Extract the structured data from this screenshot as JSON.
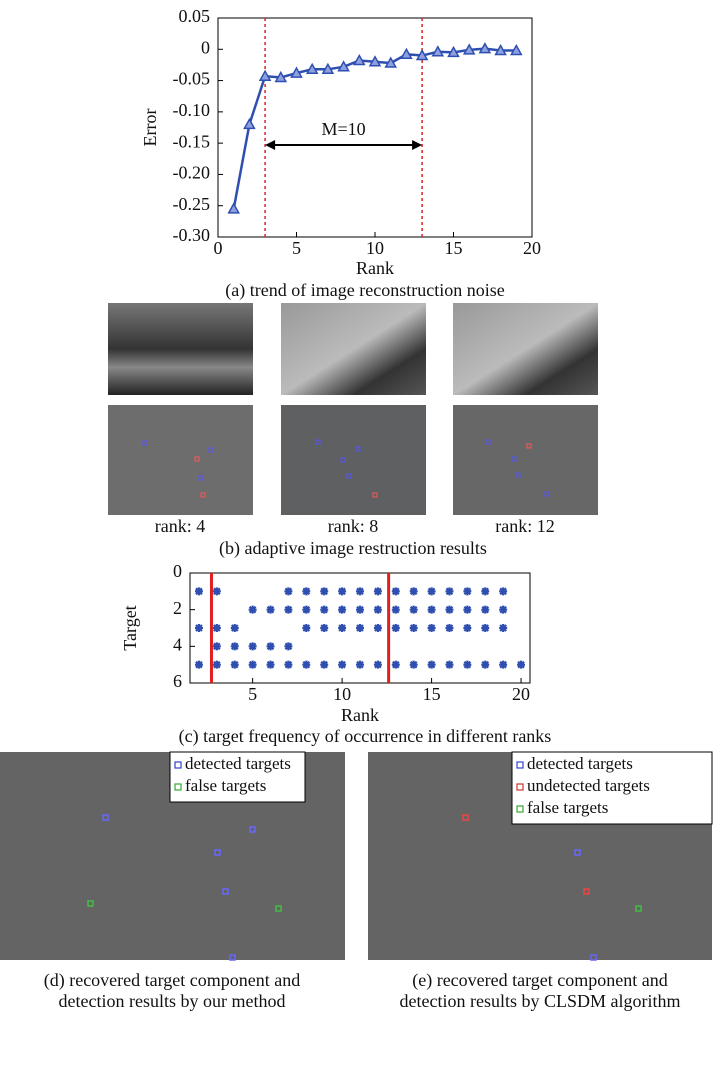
{
  "chart_data": [
    {
      "type": "line",
      "caption": "(a) trend of image reconstruction noise",
      "x_label": "Rank",
      "y_label": "Error",
      "x": [
        1,
        2,
        3,
        4,
        5,
        6,
        7,
        8,
        9,
        10,
        11,
        12,
        13,
        14,
        15,
        16,
        17,
        18,
        19
      ],
      "values": [
        -0.255,
        -0.12,
        -0.043,
        -0.045,
        -0.038,
        -0.032,
        -0.032,
        -0.028,
        -0.018,
        -0.02,
        -0.022,
        -0.008,
        -0.01,
        -0.004,
        -0.005,
        -0.001,
        0.001,
        -0.002,
        -0.002
      ],
      "color": "#2f4fb0",
      "marker": "triangle",
      "xlim": [
        0,
        20
      ],
      "xticks": [
        0,
        5,
        10,
        15,
        20
      ],
      "ylim": [
        -0.3,
        0.05
      ],
      "yticks": [
        0.05,
        0,
        {
          "value": -0.05,
          "label": "-0.05"
        },
        {
          "value": -0.1,
          "label": "-0.10"
        },
        {
          "value": -0.15,
          "label": "-0.15"
        },
        {
          "value": -0.2,
          "label": "-0.20"
        },
        {
          "value": -0.25,
          "label": "-0.25"
        },
        {
          "value": -0.3,
          "label": "-0.30"
        }
      ],
      "vlines": [
        3,
        13
      ],
      "vline_color": "#e02020",
      "annotation": "M=10"
    },
    {
      "type": "scatter",
      "caption": "(c) target frequency of occurrence in different ranks",
      "x_label": "Rank",
      "y_label": "Target",
      "x": [
        2,
        3,
        7,
        8,
        9,
        10,
        11,
        12,
        13,
        14,
        15,
        16,
        17,
        18,
        19,
        5,
        6,
        7,
        8,
        9,
        10,
        11,
        12,
        13,
        14,
        15,
        16,
        17,
        18,
        19,
        2,
        3,
        4,
        8,
        9,
        10,
        11,
        12,
        13,
        14,
        15,
        16,
        17,
        18,
        19,
        3,
        4,
        5,
        6,
        7,
        2,
        3,
        4,
        5,
        6,
        7,
        8,
        9,
        10,
        11,
        12,
        13,
        14,
        15,
        16,
        17,
        18,
        19,
        20
      ],
      "y": [
        1,
        1,
        1,
        1,
        1,
        1,
        1,
        1,
        1,
        1,
        1,
        1,
        1,
        1,
        1,
        2,
        2,
        2,
        2,
        2,
        2,
        2,
        2,
        2,
        2,
        2,
        2,
        2,
        2,
        2,
        3,
        3,
        3,
        3,
        3,
        3,
        3,
        3,
        3,
        3,
        3,
        3,
        3,
        3,
        3,
        4,
        4,
        4,
        4,
        4,
        5,
        5,
        5,
        5,
        5,
        5,
        5,
        5,
        5,
        5,
        5,
        5,
        5,
        5,
        5,
        5,
        5,
        5,
        5
      ],
      "color": "#2f4fb0",
      "xlim": [
        1.5,
        20.5
      ],
      "xticks": [
        5,
        10,
        15,
        20
      ],
      "ylim": [
        0,
        6
      ],
      "yticks": [
        0,
        2,
        4,
        6
      ],
      "y_inverted": true,
      "vlines": [
        2.7,
        12.6
      ],
      "vline_color": "#e02020"
    }
  ],
  "panel_b": {
    "caption": "(b) adaptive image restruction results",
    "labels": [
      "rank: 4",
      "rank: 8",
      "rank: 12"
    ]
  },
  "panel_d": {
    "caption": [
      "(d) recovered target component and",
      "detection results by our method"
    ],
    "legend": [
      {
        "name": "detected targets",
        "color": "#3344cc"
      },
      {
        "name": "false targets",
        "color": "#33aa33"
      }
    ]
  },
  "panel_e": {
    "caption": [
      "(e) recovered target component and",
      "detection results by CLSDM algorithm"
    ],
    "legend": [
      {
        "name": "detected targets",
        "color": "#3344cc"
      },
      {
        "name": "undetected targets",
        "color": "#cc3333"
      },
      {
        "name": "false targets",
        "color": "#33aa33"
      }
    ]
  }
}
